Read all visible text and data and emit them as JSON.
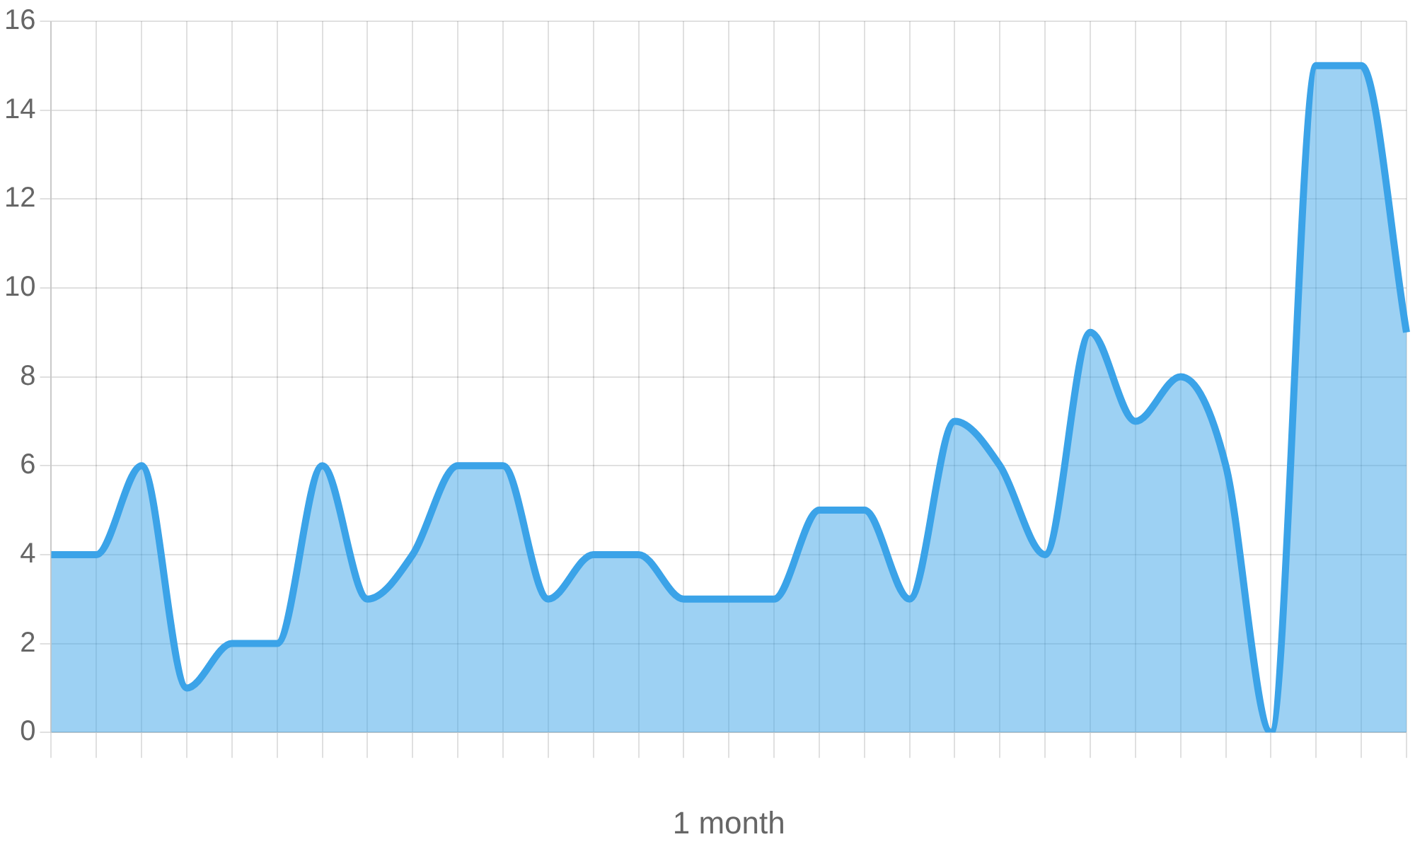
{
  "chart_data": {
    "type": "area",
    "xlabel": "1 month",
    "categories": [
      null,
      null,
      null,
      null,
      null,
      null,
      null,
      null,
      null,
      null,
      null,
      null,
      null,
      null,
      null,
      null,
      null,
      null,
      null,
      null,
      null,
      null,
      null,
      null,
      null,
      null,
      null,
      null,
      null,
      null,
      null
    ],
    "series": [
      {
        "color": "#3ba3e8",
        "values": [
          4,
          4,
          6,
          1,
          2,
          2,
          6,
          3,
          4,
          6,
          6,
          3,
          4,
          4,
          3,
          3,
          3,
          5,
          5,
          3,
          7,
          6,
          4,
          9,
          7,
          8,
          6,
          0,
          15,
          15,
          9
        ]
      }
    ],
    "ylim": [
      0,
      16
    ],
    "yticks": [
      0,
      2,
      4,
      6,
      8,
      10,
      12,
      14,
      16
    ],
    "grid": true,
    "legend": false,
    "marker": "none"
  }
}
